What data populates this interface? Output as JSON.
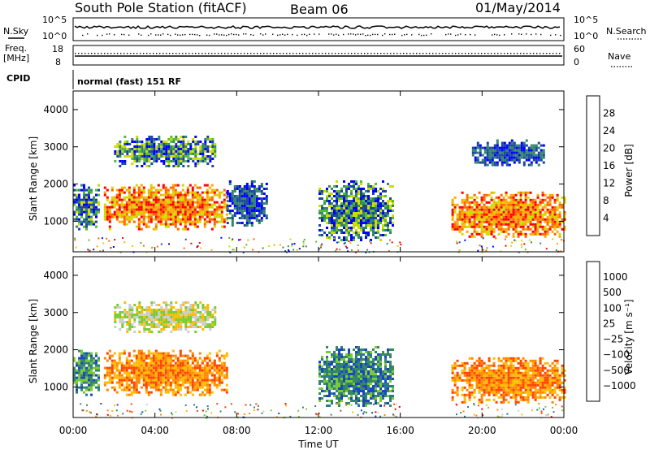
{
  "header": {
    "station": "South Pole Station (fitACF)",
    "beam": "Beam 06",
    "date": "01/May/2014"
  },
  "top_panel": {
    "left_label": "N.Sky",
    "right_label": "N.Search",
    "left_ticks": [
      "10^5",
      "10^0"
    ],
    "right_ticks": [
      "10^5",
      "10^0"
    ]
  },
  "freq_panel": {
    "left_label_1": "Freq.",
    "left_label_2": "[MHz]",
    "right_label": "Nave",
    "left_ticks": [
      "18",
      "8"
    ],
    "right_ticks": [
      "60",
      "0"
    ]
  },
  "cpid": {
    "label": "CPID",
    "mode": "normal (fast) 151 RF"
  },
  "chart_data": [
    {
      "type": "heatmap",
      "name": "power",
      "ylabel": "Slant Range [km]",
      "yticks": [
        "4000",
        "3000",
        "2000",
        "1000"
      ],
      "ylim": [
        180,
        4500
      ],
      "colorbar_label": "Power [dB]",
      "colorbar_ticks": [
        "28",
        "24",
        "20",
        "16",
        "12",
        "8",
        "4"
      ],
      "colorbar_colors": [
        "#ff0000",
        "#ff6600",
        "#ffaa00",
        "#ccdd00",
        "#55bb33",
        "#338866",
        "#1a47a0",
        "#0000ff"
      ],
      "regions": [
        {
          "t0": 0.0,
          "t1": 1.2,
          "r0": 800,
          "r1": 2000,
          "level": "mid"
        },
        {
          "t0": 1.5,
          "t1": 7.5,
          "r0": 800,
          "r1": 2000,
          "level": "high"
        },
        {
          "t0": 2.0,
          "t1": 7.0,
          "r0": 2500,
          "r1": 3300,
          "level": "mid"
        },
        {
          "t0": 7.5,
          "t1": 9.5,
          "r0": 900,
          "r1": 2100,
          "level": "low"
        },
        {
          "t0": 12.0,
          "t1": 15.6,
          "r0": 500,
          "r1": 2100,
          "level": "mid"
        },
        {
          "t0": 18.5,
          "t1": 24.0,
          "r0": 600,
          "r1": 1800,
          "level": "high"
        },
        {
          "t0": 19.5,
          "t1": 23.0,
          "r0": 2500,
          "r1": 3200,
          "level": "low"
        }
      ]
    },
    {
      "type": "heatmap",
      "name": "velocity",
      "ylabel": "Slant Range [km]",
      "yticks": [
        "4000",
        "3000",
        "2000",
        "1000"
      ],
      "ylim": [
        180,
        4500
      ],
      "colorbar_label": "Velocity [m s⁻¹]",
      "colorbar_ticks": [
        "1000",
        "500",
        "100",
        "25",
        "−25",
        "−100",
        "−500",
        "−1000"
      ],
      "colorbar_colors": [
        "#1a47c0",
        "#2a7a8a",
        "#3a8a5a",
        "#77cc33",
        "#cccccc",
        "#ffbb00",
        "#ff8800",
        "#ff4400",
        "#ee0000"
      ],
      "regions": [
        {
          "t0": 0.0,
          "t1": 1.2,
          "r0": 800,
          "r1": 2000,
          "level": "pos"
        },
        {
          "t0": 1.5,
          "t1": 7.5,
          "r0": 800,
          "r1": 2000,
          "level": "neg"
        },
        {
          "t0": 2.0,
          "t1": 7.0,
          "r0": 2500,
          "r1": 3300,
          "level": "zero"
        },
        {
          "t0": 12.0,
          "t1": 15.6,
          "r0": 500,
          "r1": 2100,
          "level": "pos"
        },
        {
          "t0": 18.5,
          "t1": 24.0,
          "r0": 600,
          "r1": 1800,
          "level": "neg"
        }
      ]
    }
  ],
  "x_axis": {
    "label": "Time UT",
    "ticks": [
      "00:00",
      "04:00",
      "08:00",
      "12:00",
      "16:00",
      "20:00",
      "00:00"
    ]
  }
}
